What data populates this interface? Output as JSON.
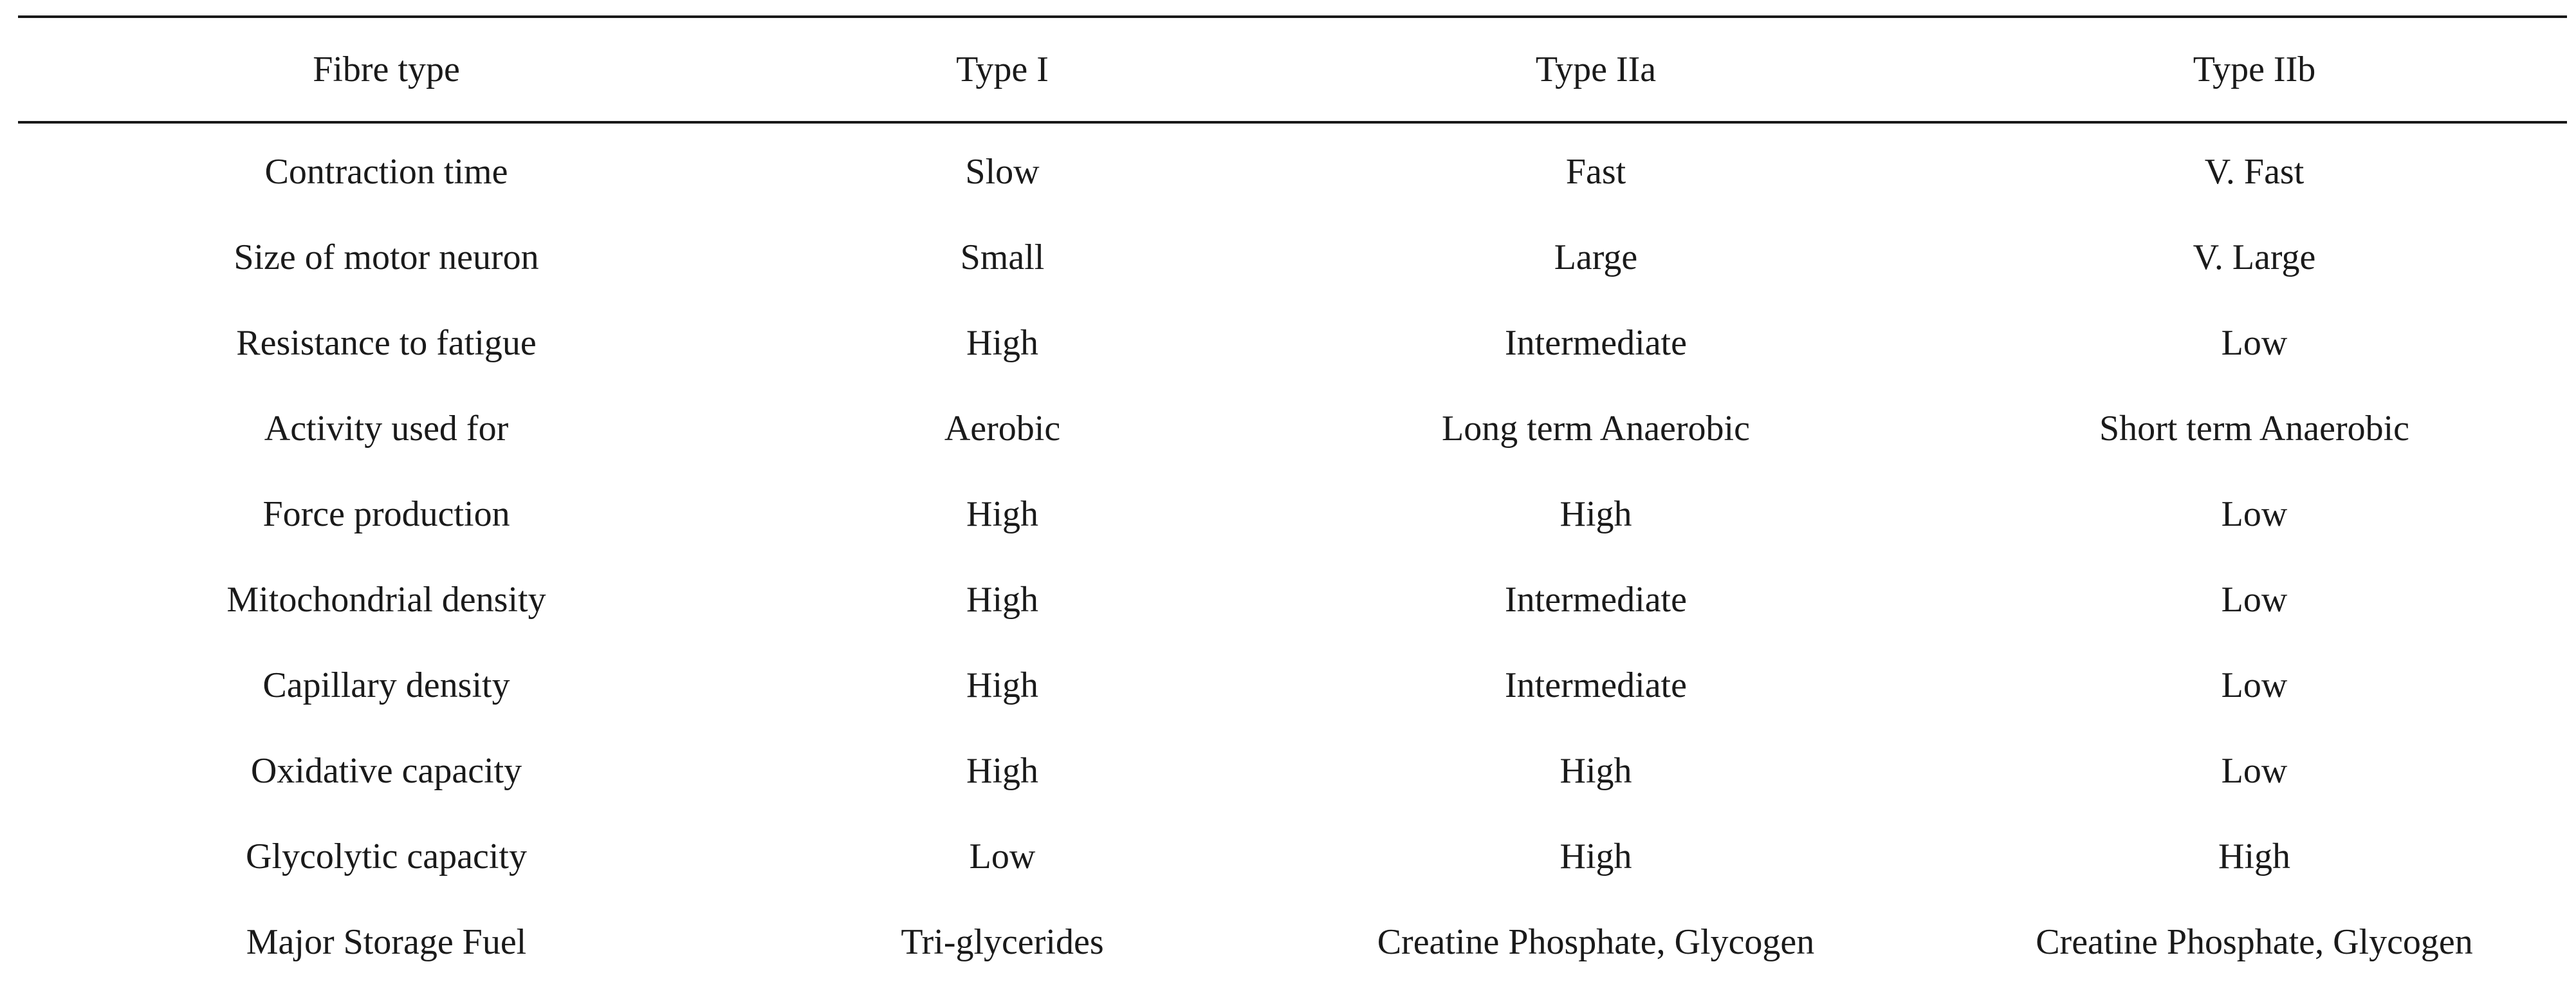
{
  "table": {
    "headers": [
      "Fibre type",
      "Type I",
      "Type IIa",
      "Type IIb"
    ],
    "rows": [
      [
        "Contraction time",
        "Slow",
        "Fast",
        "V. Fast"
      ],
      [
        "Size of motor neuron",
        "Small",
        "Large",
        "V. Large"
      ],
      [
        "Resistance to fatigue",
        "High",
        "Intermediate",
        "Low"
      ],
      [
        "Activity used for",
        "Aerobic",
        "Long term Anaerobic",
        "Short term Anaerobic"
      ],
      [
        "Force production",
        "High",
        "High",
        "Low"
      ],
      [
        "Mitochondrial density",
        "High",
        "Intermediate",
        "Low"
      ],
      [
        "Capillary density",
        "High",
        "Intermediate",
        "Low"
      ],
      [
        "Oxidative capacity",
        "High",
        "High",
        "Low"
      ],
      [
        "Glycolytic capacity",
        "Low",
        "High",
        "High"
      ],
      [
        "Major Storage Fuel",
        "Tri-glycerides",
        "Creatine Phosphate, Glycogen",
        "Creatine Phosphate, Glycogen"
      ]
    ]
  }
}
